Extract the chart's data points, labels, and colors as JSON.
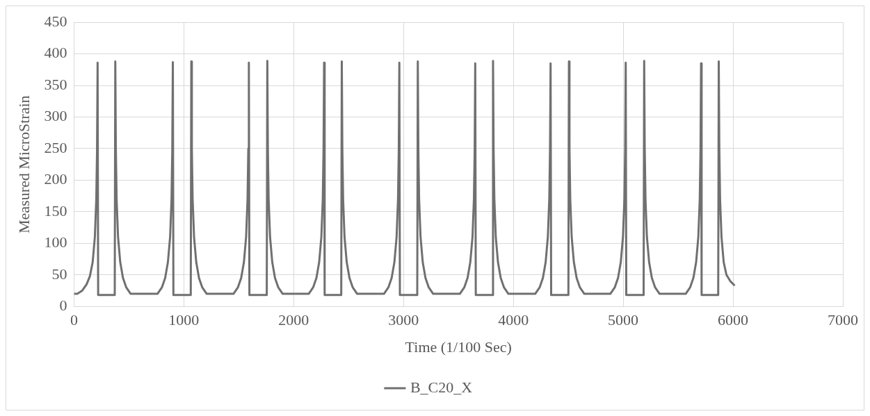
{
  "chart_data": {
    "type": "line",
    "xlabel": "Time (1/100 Sec)",
    "ylabel": "Measured MicroStrain",
    "xlim": [
      0,
      7000
    ],
    "xticks": [
      0,
      1000,
      2000,
      3000,
      4000,
      5000,
      6000,
      7000
    ],
    "ylim": [
      0,
      450
    ],
    "yticks": [
      0,
      50,
      100,
      150,
      200,
      250,
      300,
      350,
      400,
      450
    ],
    "grid": true,
    "legend": "bottom",
    "marker": "none",
    "line_style": "solid",
    "series": [
      {
        "name": "B_C20_X",
        "color": "#707070",
        "x": [
          0,
          30,
          75,
          115,
          145,
          170,
          190,
          203,
          210,
          215,
          220,
          371,
          376,
          381,
          388,
          401,
          421,
          446,
          476,
          516,
          760,
          800,
          830,
          855,
          875,
          888,
          895,
          900,
          905,
          1063,
          1068,
          1073,
          1080,
          1093,
          1113,
          1138,
          1168,
          1208,
          1452,
          1492,
          1522,
          1547,
          1567,
          1580,
          1587,
          1592,
          1597,
          1755,
          1760,
          1765,
          1772,
          1785,
          1805,
          1830,
          1860,
          1900,
          2137,
          2177,
          2207,
          2232,
          2252,
          2265,
          2272,
          2277,
          2282,
          2433,
          2438,
          2443,
          2450,
          2463,
          2483,
          2508,
          2538,
          2578,
          2822,
          2862,
          2892,
          2917,
          2937,
          2950,
          2957,
          2962,
          2967,
          3125,
          3130,
          3135,
          3142,
          3155,
          3175,
          3200,
          3230,
          3270,
          3513,
          3553,
          3583,
          3608,
          3628,
          3641,
          3648,
          3653,
          3658,
          3810,
          3815,
          3820,
          3827,
          3840,
          3860,
          3885,
          3915,
          3955,
          4199,
          4239,
          4269,
          4294,
          4314,
          4327,
          4334,
          4339,
          4344,
          4501,
          4506,
          4511,
          4518,
          4531,
          4551,
          4576,
          4606,
          4646,
          4883,
          4923,
          4953,
          4978,
          4998,
          5011,
          5018,
          5023,
          5028,
          5186,
          5191,
          5196,
          5203,
          5216,
          5236,
          5261,
          5291,
          5331,
          5569,
          5609,
          5639,
          5664,
          5684,
          5697,
          5704,
          5709,
          5714,
          5865,
          5870,
          5875,
          5882,
          5895,
          5915,
          5940,
          5975,
          6015
        ],
        "values": [
          20,
          20,
          25,
          35,
          48,
          70,
          110,
          170,
          250,
          386,
          18,
          18,
          388,
          250,
          170,
          110,
          70,
          45,
          30,
          20,
          20,
          30,
          45,
          70,
          110,
          170,
          250,
          387,
          18,
          18,
          388,
          250,
          170,
          110,
          70,
          45,
          30,
          20,
          20,
          30,
          45,
          70,
          110,
          170,
          250,
          386,
          18,
          18,
          389,
          250,
          170,
          110,
          70,
          45,
          30,
          20,
          20,
          30,
          45,
          70,
          110,
          170,
          250,
          386,
          18,
          18,
          388,
          250,
          170,
          110,
          70,
          45,
          30,
          20,
          20,
          30,
          45,
          70,
          110,
          170,
          250,
          386,
          18,
          18,
          388,
          250,
          170,
          110,
          70,
          45,
          30,
          20,
          20,
          30,
          45,
          70,
          110,
          170,
          250,
          385,
          18,
          18,
          389,
          250,
          170,
          110,
          70,
          45,
          30,
          20,
          20,
          30,
          45,
          70,
          110,
          170,
          250,
          385,
          18,
          18,
          388,
          250,
          170,
          110,
          70,
          45,
          30,
          20,
          20,
          30,
          45,
          70,
          110,
          170,
          250,
          386,
          18,
          18,
          389,
          250,
          170,
          110,
          70,
          45,
          30,
          20,
          20,
          30,
          45,
          70,
          110,
          170,
          250,
          385,
          18,
          18,
          388,
          250,
          170,
          110,
          70,
          50,
          40,
          33
        ]
      }
    ]
  }
}
